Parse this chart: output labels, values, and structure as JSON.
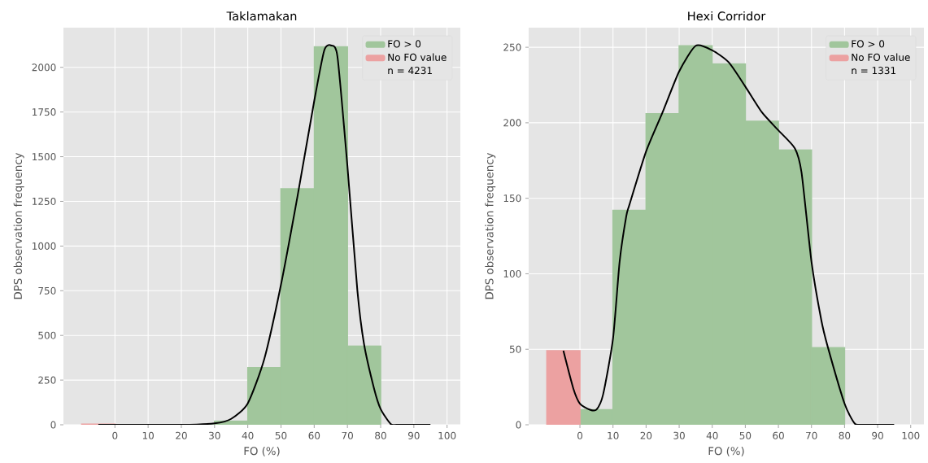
{
  "chart_data": [
    {
      "type": "histogram",
      "title": "Taklamakan",
      "xlabel": "FO (%)",
      "ylabel": "DPS observation frequency",
      "series": [
        {
          "name": "FO > 0",
          "color": "#a1c69c",
          "bins": [
            0,
            10,
            20,
            30,
            40,
            50,
            60,
            70,
            80
          ],
          "values": [
            0,
            0,
            0,
            20,
            320,
            1320,
            2115,
            440
          ]
        },
        {
          "name": "No FO value",
          "color": "#eca1a1",
          "bins": [
            -10,
            0
          ],
          "values": [
            3
          ]
        },
        {
          "type": "line",
          "color": "#000000",
          "x": [
            -5,
            20,
            30,
            35,
            40,
            45,
            50,
            55,
            60,
            63,
            65,
            67,
            70,
            73,
            75,
            78,
            80,
            83,
            85,
            95
          ],
          "values": [
            0,
            0,
            8,
            33,
            120,
            370,
            784,
            1281,
            1811,
            2093,
            2123,
            2060,
            1447,
            751,
            452,
            204,
            88,
            5,
            0,
            0
          ]
        }
      ],
      "annotations": [
        "n = 4231"
      ],
      "xlim": [
        -15.5,
        104
      ],
      "ylim": [
        0,
        2222
      ],
      "xticks": [
        0,
        10,
        20,
        30,
        40,
        50,
        60,
        70,
        80,
        90,
        100
      ],
      "yticks": [
        0,
        250,
        500,
        750,
        1000,
        1250,
        1500,
        1750,
        2000
      ],
      "grid": true,
      "legend": "top right"
    },
    {
      "type": "histogram",
      "title": "Hexi Corridor",
      "xlabel": "FO (%)",
      "ylabel": "DPS observation frequency",
      "series": [
        {
          "name": "FO > 0",
          "color": "#a1c69c",
          "bins": [
            0,
            10,
            20,
            30,
            40,
            50,
            60,
            70,
            80
          ],
          "values": [
            10,
            142,
            206,
            251,
            239,
            201,
            182,
            51
          ]
        },
        {
          "name": "No FO value",
          "color": "#eca1a1",
          "bins": [
            -10,
            0
          ],
          "values": [
            49
          ]
        },
        {
          "type": "line",
          "color": "#000000",
          "x": [
            -5,
            -2,
            0,
            3,
            5,
            7,
            10,
            12,
            14,
            15,
            20,
            25,
            30,
            35,
            40,
            45,
            50,
            55,
            60,
            65,
            67,
            70,
            73,
            75,
            80,
            83,
            85,
            95
          ],
          "values": [
            49,
            24,
            14,
            10,
            10,
            20,
            57,
            108,
            138,
            146,
            181,
            207,
            234,
            251,
            248,
            240,
            224,
            207,
            195,
            183,
            167,
            108,
            69,
            51,
            14,
            1,
            0,
            0
          ]
        }
      ],
      "annotations": [
        "n = 1331"
      ],
      "xlim": [
        -15.5,
        104
      ],
      "ylim": [
        0,
        263
      ],
      "xticks": [
        0,
        10,
        20,
        30,
        40,
        50,
        60,
        70,
        80,
        90,
        100
      ],
      "yticks": [
        0,
        50,
        100,
        150,
        200,
        250
      ],
      "grid": true,
      "legend": "top right"
    }
  ]
}
